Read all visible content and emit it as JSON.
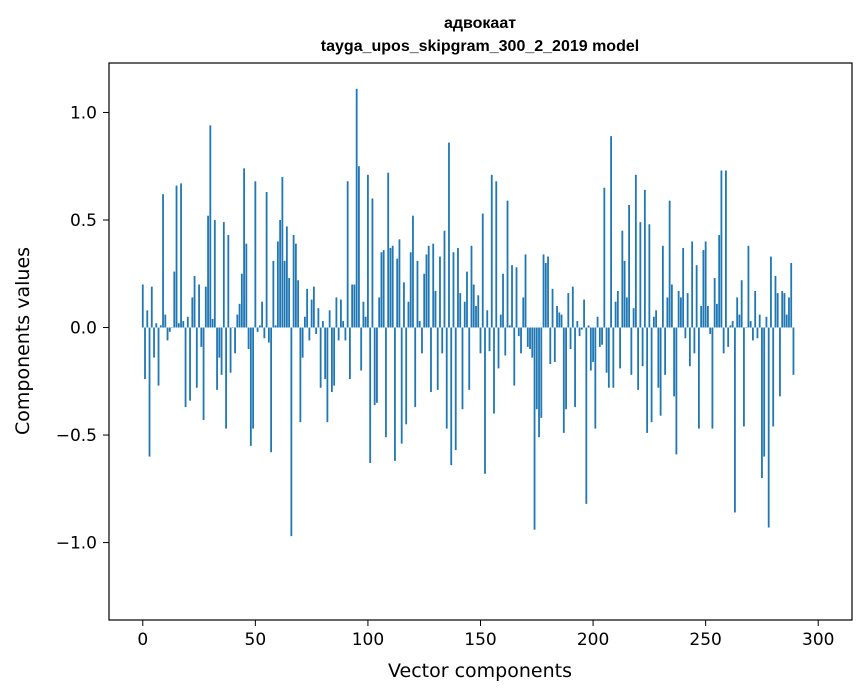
{
  "chart_data": {
    "type": "bar",
    "title": "адвокаат",
    "subtitle": "tayga_upos_skipgram_300_2_2019 model",
    "xlabel": "Vector components",
    "ylabel": "Components values",
    "xlim": [
      -15,
      315
    ],
    "ylim": [
      -1.36,
      1.23
    ],
    "xticks": [
      0,
      50,
      100,
      150,
      200,
      250,
      300
    ],
    "xtick_labels": [
      "0",
      "50",
      "100",
      "150",
      "200",
      "250",
      "300"
    ],
    "yticks": [
      -1.0,
      -0.5,
      0.0,
      0.5,
      1.0
    ],
    "ytick_labels": [
      "−1.0",
      "−0.5",
      "0.0",
      "0.5",
      "1.0"
    ],
    "bar_color": "#1f77b4",
    "grid": false,
    "legend": "none",
    "values": [
      0.2,
      -0.24,
      0.08,
      -0.6,
      0.19,
      -0.14,
      0.02,
      -0.27,
      0.01,
      0.62,
      0.06,
      -0.06,
      -0.02,
      0.0,
      0.26,
      0.66,
      0.02,
      0.67,
      0.03,
      -0.37,
      0.05,
      -0.34,
      0.14,
      0.24,
      -0.28,
      0.2,
      -0.09,
      -0.43,
      0.19,
      0.52,
      0.94,
      0.04,
      0.5,
      -0.29,
      -0.14,
      -0.22,
      0.49,
      -0.47,
      0.43,
      -0.21,
      0.0,
      -0.12,
      0.06,
      0.11,
      0.25,
      0.74,
      0.39,
      -0.1,
      -0.55,
      -0.47,
      0.68,
      -0.02,
      0.01,
      0.12,
      -0.05,
      0.63,
      -0.07,
      -0.58,
      0.31,
      0.01,
      0.4,
      0.5,
      0.7,
      0.31,
      0.47,
      0.23,
      -0.97,
      0.43,
      0.39,
      0.22,
      -0.44,
      -0.14,
      0.05,
      0.18,
      -0.06,
      0.13,
      0.19,
      -0.03,
      0.09,
      -0.28,
      0.03,
      -0.24,
      -0.44,
      0.08,
      -0.3,
      -0.27,
      0.14,
      -0.06,
      0.13,
      0.03,
      -0.06,
      0.68,
      -0.24,
      0.2,
      0.2,
      1.11,
      0.75,
      -0.2,
      0.12,
      0.05,
      0.71,
      -0.63,
      0.6,
      -0.36,
      -0.35,
      0.14,
      0.35,
      0.36,
      -0.51,
      0.72,
      0.37,
      0.38,
      -0.62,
      0.32,
      0.41,
      -0.54,
      0.21,
      -0.45,
      0.12,
      0.35,
      0.52,
      -0.37,
      0.31,
      0.03,
      -0.12,
      0.25,
      0.34,
      0.38,
      -0.3,
      0.39,
      0.17,
      -0.29,
      0.33,
      -0.12,
      0.45,
      -0.47,
      0.86,
      -0.64,
      0.35,
      -0.57,
      0.37,
      0.16,
      -0.38,
      0.12,
      0.26,
      -0.29,
      0.38,
      0.2,
      0.1,
      0.15,
      -0.12,
      0.53,
      -0.68,
      0.08,
      -0.11,
      0.71,
      -0.4,
      0.68,
      -0.19,
      0.06,
      0.25,
      -0.13,
      0.59,
      0.01,
      0.29,
      -0.27,
      0.28,
      -0.04,
      -0.12,
      0.14,
      0.34,
      -0.09,
      -0.1,
      -0.14,
      -0.94,
      -0.38,
      -0.51,
      -0.42,
      0.34,
      0.3,
      0.33,
      -0.17,
      0.18,
      -0.16,
      0.1,
      0.07,
      0.06,
      -0.49,
      -0.38,
      0.16,
      -0.1,
      0.19,
      -0.37,
      0.03,
      -0.04,
      -0.01,
      0.13,
      -0.82,
      0.01,
      -0.2,
      -0.16,
      -0.47,
      0.05,
      -0.09,
      -0.08,
      0.65,
      -0.21,
      -0.28,
      0.89,
      -0.28,
      0.12,
      0.17,
      -0.19,
      0.45,
      0.31,
      0.14,
      0.57,
      -0.22,
      0.09,
      0.71,
      -0.29,
      0.49,
      -0.18,
      0.64,
      -0.49,
      0.48,
      -0.44,
      0.05,
      0.08,
      -0.28,
      -0.41,
      0.38,
      -0.22,
      0.14,
      0.59,
      0.2,
      -0.32,
      -0.59,
      0.17,
      0.14,
      0.37,
      -0.05,
      0.16,
      -0.18,
      0.4,
      -0.12,
      0.29,
      -0.47,
      0.1,
      0.36,
      0.4,
      0.1,
      -0.03,
      -0.47,
      0.23,
      0.11,
      0.43,
      0.73,
      -0.12,
      0.73,
      -0.09,
      0.01,
      0.03,
      -0.86,
      0.14,
      0.06,
      0.22,
      -0.46,
      0.0,
      0.38,
      0.03,
      -0.06,
      0.17,
      -0.05,
      0.06,
      -0.7,
      -0.6,
      0.05,
      -0.93,
      0.33,
      -0.46,
      0.24,
      0.16,
      -0.32,
      0.17,
      0.16,
      0.06,
      0.14,
      0.3,
      -0.22
    ]
  }
}
